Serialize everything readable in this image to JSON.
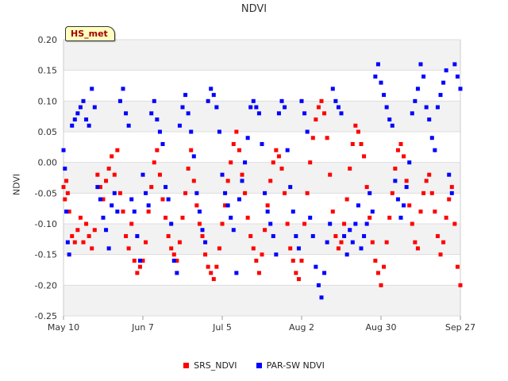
{
  "badge": "HS_met",
  "chart_data": {
    "type": "scatter",
    "title": "NDVI",
    "xlabel": "",
    "ylabel": "NDVI",
    "ylim": [
      -0.25,
      0.2
    ],
    "yticks": [
      "0.20",
      "0.15",
      "0.10",
      "0.05",
      "0.00",
      "-0.05",
      "-0.10",
      "-0.15",
      "-0.20",
      "-0.25"
    ],
    "ytick_values": [
      0.2,
      0.15,
      0.1,
      0.05,
      0.0,
      -0.05,
      -0.1,
      -0.15,
      -0.2,
      -0.25
    ],
    "xlim_days": [
      0,
      140
    ],
    "xticks": [
      "May 10",
      "Jun 7",
      "Jul 5",
      "Aug 2",
      "Aug 30",
      "Sep 27"
    ],
    "xtick_days": [
      0,
      28,
      56,
      84,
      112,
      140
    ],
    "bands": true,
    "series": [
      {
        "name": "SRS_NDVI",
        "color": "#ff0000",
        "points": [
          [
            0,
            -0.04
          ],
          [
            0.5,
            -0.06
          ],
          [
            1,
            -0.03
          ],
          [
            1.5,
            -0.05
          ],
          [
            2,
            -0.08
          ],
          [
            3,
            -0.12
          ],
          [
            4,
            -0.13
          ],
          [
            5,
            -0.11
          ],
          [
            6,
            -0.09
          ],
          [
            7,
            -0.13
          ],
          [
            8,
            -0.1
          ],
          [
            9,
            -0.12
          ],
          [
            10,
            -0.14
          ],
          [
            11,
            -0.11
          ],
          [
            12,
            -0.02
          ],
          [
            13,
            -0.04
          ],
          [
            14,
            -0.06
          ],
          [
            15,
            -0.03
          ],
          [
            16,
            -0.01
          ],
          [
            17,
            0.01
          ],
          [
            18,
            -0.02
          ],
          [
            19,
            0.02
          ],
          [
            20,
            -0.05
          ],
          [
            21,
            -0.08
          ],
          [
            22,
            -0.12
          ],
          [
            23,
            -0.14
          ],
          [
            24,
            -0.1
          ],
          [
            25,
            -0.16
          ],
          [
            26,
            -0.18
          ],
          [
            27,
            -0.17
          ],
          [
            28,
            -0.16
          ],
          [
            29,
            -0.13
          ],
          [
            30,
            -0.08
          ],
          [
            31,
            -0.04
          ],
          [
            32,
            0.0
          ],
          [
            33,
            0.02
          ],
          [
            34,
            -0.02
          ],
          [
            35,
            -0.06
          ],
          [
            36,
            -0.09
          ],
          [
            37,
            -0.12
          ],
          [
            38,
            -0.14
          ],
          [
            39,
            -0.15
          ],
          [
            40,
            -0.16
          ],
          [
            41,
            -0.13
          ],
          [
            42,
            -0.09
          ],
          [
            43,
            -0.05
          ],
          [
            44,
            -0.01
          ],
          [
            45,
            0.02
          ],
          [
            46,
            -0.03
          ],
          [
            47,
            -0.07
          ],
          [
            48,
            -0.1
          ],
          [
            49,
            -0.12
          ],
          [
            50,
            -0.15
          ],
          [
            51,
            -0.17
          ],
          [
            52,
            -0.18
          ],
          [
            53,
            -0.19
          ],
          [
            54,
            -0.17
          ],
          [
            55,
            -0.14
          ],
          [
            56,
            -0.1
          ],
          [
            57,
            -0.07
          ],
          [
            58,
            -0.03
          ],
          [
            59,
            0.0
          ],
          [
            60,
            0.03
          ],
          [
            61,
            0.05
          ],
          [
            62,
            0.02
          ],
          [
            63,
            -0.02
          ],
          [
            64,
            -0.05
          ],
          [
            65,
            -0.09
          ],
          [
            66,
            -0.12
          ],
          [
            67,
            -0.14
          ],
          [
            68,
            -0.16
          ],
          [
            69,
            -0.18
          ],
          [
            70,
            -0.15
          ],
          [
            71,
            -0.11
          ],
          [
            72,
            -0.07
          ],
          [
            73,
            -0.03
          ],
          [
            74,
            0.0
          ],
          [
            75,
            0.02
          ],
          [
            76,
            0.01
          ],
          [
            77,
            -0.01
          ],
          [
            78,
            -0.05
          ],
          [
            79,
            -0.1
          ],
          [
            80,
            -0.14
          ],
          [
            81,
            -0.16
          ],
          [
            82,
            -0.18
          ],
          [
            83,
            -0.19
          ],
          [
            84,
            -0.16
          ],
          [
            85,
            -0.1
          ],
          [
            86,
            -0.05
          ],
          [
            87,
            0.0
          ],
          [
            88,
            0.04
          ],
          [
            89,
            0.07
          ],
          [
            90,
            0.09
          ],
          [
            91,
            0.1
          ],
          [
            92,
            0.08
          ],
          [
            93,
            0.04
          ],
          [
            94,
            -0.02
          ],
          [
            95,
            -0.08
          ],
          [
            96,
            -0.12
          ],
          [
            97,
            -0.14
          ],
          [
            98,
            -0.13
          ],
          [
            99,
            -0.1
          ],
          [
            100,
            -0.06
          ],
          [
            101,
            -0.01
          ],
          [
            102,
            0.03
          ],
          [
            103,
            0.06
          ],
          [
            104,
            0.05
          ],
          [
            105,
            0.03
          ],
          [
            106,
            0.01
          ],
          [
            107,
            -0.04
          ],
          [
            108,
            -0.09
          ],
          [
            109,
            -0.13
          ],
          [
            110,
            -0.16
          ],
          [
            111,
            -0.18
          ],
          [
            112,
            -0.2
          ],
          [
            113,
            -0.17
          ],
          [
            114,
            -0.13
          ],
          [
            115,
            -0.09
          ],
          [
            116,
            -0.05
          ],
          [
            117,
            -0.01
          ],
          [
            118,
            0.02
          ],
          [
            119,
            0.03
          ],
          [
            120,
            0.01
          ],
          [
            121,
            -0.03
          ],
          [
            122,
            -0.07
          ],
          [
            123,
            -0.1
          ],
          [
            124,
            -0.13
          ],
          [
            125,
            -0.14
          ],
          [
            126,
            -0.08
          ],
          [
            127,
            -0.05
          ],
          [
            128,
            -0.03
          ],
          [
            129,
            -0.02
          ],
          [
            130,
            -0.05
          ],
          [
            131,
            -0.08
          ],
          [
            132,
            -0.12
          ],
          [
            133,
            -0.15
          ],
          [
            134,
            -0.13
          ],
          [
            135,
            -0.09
          ],
          [
            136,
            -0.06
          ],
          [
            137,
            -0.04
          ],
          [
            138,
            -0.1
          ],
          [
            139,
            -0.17
          ],
          [
            140,
            -0.2
          ]
        ]
      },
      {
        "name": "PAR-SW NDVI",
        "color": "#0000ff",
        "points": [
          [
            0,
            0.02
          ],
          [
            0.5,
            -0.01
          ],
          [
            1,
            -0.08
          ],
          [
            1.5,
            -0.13
          ],
          [
            2,
            -0.15
          ],
          [
            3,
            0.06
          ],
          [
            4,
            0.07
          ],
          [
            5,
            0.08
          ],
          [
            6,
            0.09
          ],
          [
            7,
            0.1
          ],
          [
            8,
            0.07
          ],
          [
            9,
            0.06
          ],
          [
            10,
            0.12
          ],
          [
            11,
            0.09
          ],
          [
            12,
            -0.04
          ],
          [
            13,
            -0.06
          ],
          [
            14,
            -0.09
          ],
          [
            15,
            -0.11
          ],
          [
            16,
            -0.14
          ],
          [
            17,
            -0.07
          ],
          [
            18,
            -0.05
          ],
          [
            19,
            -0.08
          ],
          [
            20,
            0.1
          ],
          [
            21,
            0.12
          ],
          [
            22,
            0.08
          ],
          [
            23,
            0.06
          ],
          [
            24,
            -0.06
          ],
          [
            25,
            -0.08
          ],
          [
            26,
            -0.12
          ],
          [
            27,
            -0.16
          ],
          [
            28,
            -0.02
          ],
          [
            29,
            -0.05
          ],
          [
            30,
            -0.07
          ],
          [
            31,
            0.08
          ],
          [
            32,
            0.1
          ],
          [
            33,
            0.07
          ],
          [
            34,
            0.05
          ],
          [
            35,
            0.03
          ],
          [
            36,
            -0.04
          ],
          [
            37,
            -0.06
          ],
          [
            38,
            -0.1
          ],
          [
            39,
            -0.16
          ],
          [
            40,
            -0.18
          ],
          [
            41,
            0.06
          ],
          [
            42,
            0.09
          ],
          [
            43,
            0.11
          ],
          [
            44,
            0.08
          ],
          [
            45,
            0.05
          ],
          [
            46,
            0.01
          ],
          [
            47,
            -0.05
          ],
          [
            48,
            -0.08
          ],
          [
            49,
            -0.11
          ],
          [
            50,
            -0.13
          ],
          [
            51,
            0.1
          ],
          [
            52,
            0.12
          ],
          [
            53,
            0.11
          ],
          [
            54,
            0.09
          ],
          [
            55,
            0.05
          ],
          [
            56,
            -0.02
          ],
          [
            57,
            -0.05
          ],
          [
            58,
            -0.07
          ],
          [
            59,
            -0.09
          ],
          [
            60,
            -0.11
          ],
          [
            61,
            -0.18
          ],
          [
            62,
            -0.06
          ],
          [
            63,
            -0.03
          ],
          [
            64,
            0.0
          ],
          [
            65,
            0.04
          ],
          [
            66,
            0.09
          ],
          [
            67,
            0.1
          ],
          [
            68,
            0.09
          ],
          [
            69,
            0.08
          ],
          [
            70,
            0.03
          ],
          [
            71,
            -0.05
          ],
          [
            72,
            -0.08
          ],
          [
            73,
            -0.1
          ],
          [
            74,
            -0.12
          ],
          [
            75,
            -0.15
          ],
          [
            76,
            0.08
          ],
          [
            77,
            0.1
          ],
          [
            78,
            0.09
          ],
          [
            79,
            0.02
          ],
          [
            80,
            -0.04
          ],
          [
            81,
            -0.08
          ],
          [
            82,
            -0.12
          ],
          [
            83,
            -0.14
          ],
          [
            84,
            0.1
          ],
          [
            85,
            0.08
          ],
          [
            86,
            0.05
          ],
          [
            87,
            -0.09
          ],
          [
            88,
            -0.12
          ],
          [
            89,
            -0.17
          ],
          [
            90,
            -0.2
          ],
          [
            91,
            -0.22
          ],
          [
            92,
            -0.18
          ],
          [
            93,
            -0.13
          ],
          [
            94,
            -0.1
          ],
          [
            95,
            0.12
          ],
          [
            96,
            0.1
          ],
          [
            97,
            0.09
          ],
          [
            98,
            0.08
          ],
          [
            99,
            -0.12
          ],
          [
            100,
            -0.15
          ],
          [
            101,
            -0.11
          ],
          [
            102,
            -0.13
          ],
          [
            103,
            -0.1
          ],
          [
            104,
            -0.07
          ],
          [
            105,
            -0.14
          ],
          [
            106,
            -0.12
          ],
          [
            107,
            -0.1
          ],
          [
            108,
            -0.05
          ],
          [
            109,
            -0.08
          ],
          [
            110,
            0.14
          ],
          [
            111,
            0.16
          ],
          [
            112,
            0.13
          ],
          [
            113,
            0.11
          ],
          [
            114,
            0.09
          ],
          [
            115,
            0.07
          ],
          [
            116,
            0.06
          ],
          [
            117,
            -0.03
          ],
          [
            118,
            -0.06
          ],
          [
            119,
            -0.09
          ],
          [
            120,
            -0.07
          ],
          [
            121,
            -0.04
          ],
          [
            122,
            0.0
          ],
          [
            123,
            0.08
          ],
          [
            124,
            0.1
          ],
          [
            125,
            0.12
          ],
          [
            126,
            0.16
          ],
          [
            127,
            0.14
          ],
          [
            128,
            0.09
          ],
          [
            129,
            0.07
          ],
          [
            130,
            0.04
          ],
          [
            131,
            0.02
          ],
          [
            132,
            0.09
          ],
          [
            133,
            0.11
          ],
          [
            134,
            0.13
          ],
          [
            135,
            0.15
          ],
          [
            136,
            -0.02
          ],
          [
            137,
            -0.05
          ],
          [
            138,
            0.16
          ],
          [
            139,
            0.14
          ],
          [
            140,
            0.12
          ]
        ]
      }
    ]
  }
}
